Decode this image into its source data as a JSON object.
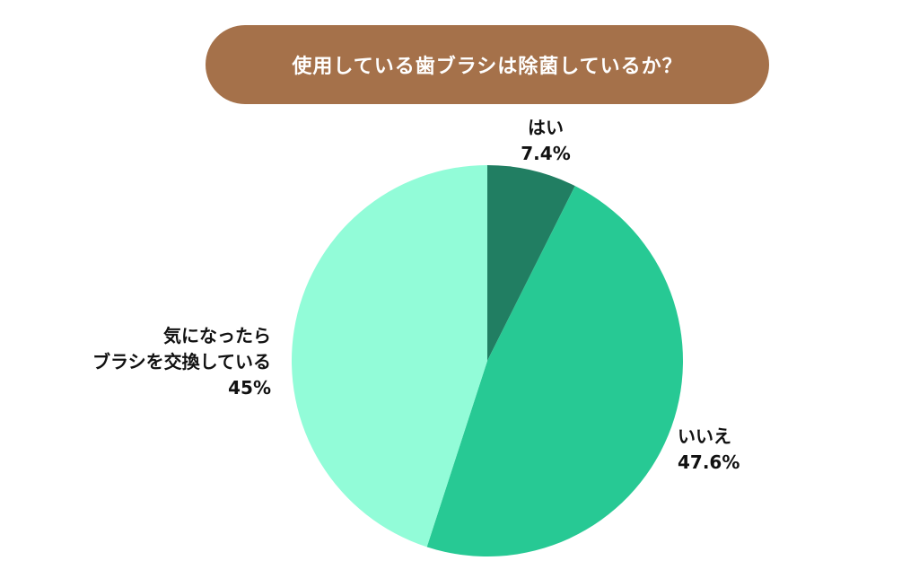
{
  "chart_data": {
    "type": "pie",
    "title": "使用している歯ブラシは除菌しているか？",
    "categories": [
      "はい",
      "いいえ",
      "気になったら\nブラシを交換している"
    ],
    "values": [
      7.4,
      47.6,
      45
    ],
    "value_labels": [
      "7.4%",
      "47.6%",
      "45%"
    ],
    "colors": [
      "#217e62",
      "#27c994",
      "#92fcd8"
    ]
  }
}
